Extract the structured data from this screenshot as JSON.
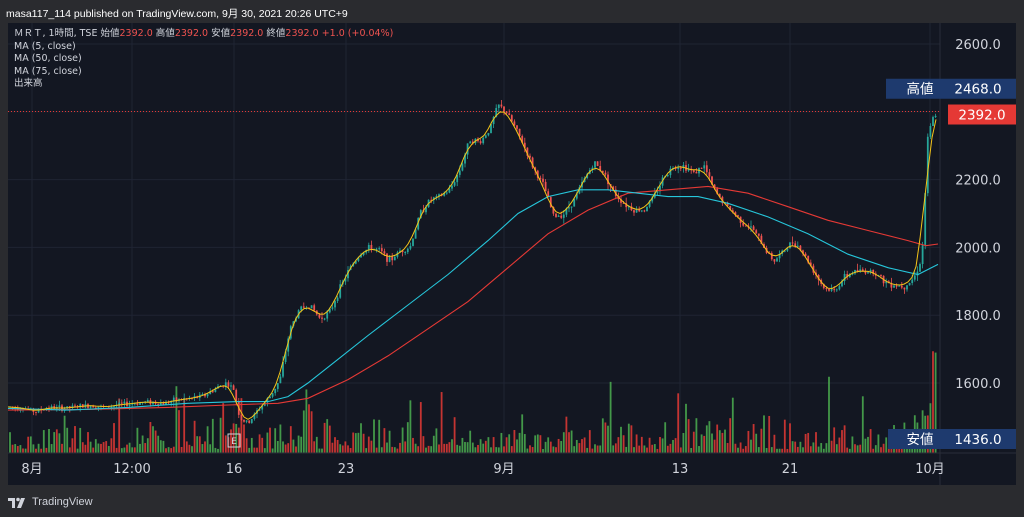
{
  "header": {
    "published": "masa117_114 published on TradingView.com, 9月 30, 2021 20:26 UTC+9"
  },
  "legend": {
    "symbol": "ＭＲＴ, 1時間, TSE",
    "open_label": "始値",
    "open": "2392.0",
    "high_label": "高値",
    "high": "2392.0",
    "low_label": "安値",
    "low": "2392.0",
    "close_label": "終値",
    "close": "2392.0",
    "change": "+1.0 (+0.04%)",
    "ma5": "MA (5, close)",
    "ma50": "MA (50, close)",
    "ma75": "MA (75, close)",
    "volume": "出来高"
  },
  "footer": {
    "brand": "TradingView"
  },
  "colors": {
    "up": "#26a69a",
    "down": "#ef5350",
    "ma5": "#f5c518",
    "ma50": "#26c6da",
    "ma75": "#e53935",
    "vol_up": "#4caf50",
    "vol_down": "#e53935",
    "label_bg": "#1e3a6e",
    "price_bg": "#e53935"
  },
  "chart_data": {
    "type": "candlestick",
    "y_axis": {
      "ticks": [
        "2600.0",
        "2200.0",
        "2000.0",
        "1800.0",
        "1600.0"
      ],
      "range": [
        1436,
        2600
      ]
    },
    "x_axis": {
      "ticks": [
        "8月",
        "12:00",
        "16",
        "23",
        "9月",
        "13",
        "21",
        "10月"
      ]
    },
    "labels": {
      "high_label": "高値",
      "high_value": "2468.0",
      "low_label": "安値",
      "low_value": "1436.0",
      "last_price": "2392.0"
    },
    "price_path": [
      [
        0,
        1530
      ],
      [
        18,
        1525
      ],
      [
        28,
        1515
      ],
      [
        40,
        1528
      ],
      [
        55,
        1525
      ],
      [
        70,
        1530
      ],
      [
        85,
        1535
      ],
      [
        95,
        1528
      ],
      [
        110,
        1535
      ],
      [
        125,
        1540
      ],
      [
        140,
        1545
      ],
      [
        155,
        1540
      ],
      [
        170,
        1550
      ],
      [
        185,
        1555
      ],
      [
        198,
        1565
      ],
      [
        208,
        1585
      ],
      [
        218,
        1600
      ],
      [
        226,
        1580
      ],
      [
        232,
        1495
      ],
      [
        240,
        1480
      ],
      [
        250,
        1520
      ],
      [
        262,
        1560
      ],
      [
        272,
        1610
      ],
      [
        282,
        1760
      ],
      [
        292,
        1820
      ],
      [
        302,
        1830
      ],
      [
        312,
        1790
      ],
      [
        322,
        1810
      ],
      [
        332,
        1880
      ],
      [
        342,
        1940
      ],
      [
        352,
        1980
      ],
      [
        362,
        2000
      ],
      [
        372,
        1990
      ],
      [
        382,
        1960
      ],
      [
        392,
        1990
      ],
      [
        402,
        2000
      ],
      [
        412,
        2100
      ],
      [
        422,
        2140
      ],
      [
        432,
        2150
      ],
      [
        442,
        2170
      ],
      [
        452,
        2230
      ],
      [
        462,
        2320
      ],
      [
        472,
        2310
      ],
      [
        482,
        2350
      ],
      [
        490,
        2420
      ],
      [
        498,
        2400
      ],
      [
        506,
        2360
      ],
      [
        516,
        2300
      ],
      [
        526,
        2230
      ],
      [
        536,
        2180
      ],
      [
        546,
        2090
      ],
      [
        556,
        2100
      ],
      [
        566,
        2140
      ],
      [
        576,
        2200
      ],
      [
        586,
        2250
      ],
      [
        596,
        2220
      ],
      [
        606,
        2160
      ],
      [
        616,
        2130
      ],
      [
        626,
        2110
      ],
      [
        636,
        2110
      ],
      [
        646,
        2150
      ],
      [
        656,
        2210
      ],
      [
        666,
        2240
      ],
      [
        676,
        2240
      ],
      [
        686,
        2220
      ],
      [
        696,
        2240
      ],
      [
        706,
        2170
      ],
      [
        716,
        2130
      ],
      [
        726,
        2100
      ],
      [
        736,
        2070
      ],
      [
        746,
        2050
      ],
      [
        756,
        2000
      ],
      [
        766,
        1960
      ],
      [
        776,
        1990
      ],
      [
        786,
        2020
      ],
      [
        796,
        1980
      ],
      [
        806,
        1930
      ],
      [
        816,
        1880
      ],
      [
        826,
        1870
      ],
      [
        836,
        1910
      ],
      [
        846,
        1930
      ],
      [
        856,
        1930
      ],
      [
        866,
        1930
      ],
      [
        876,
        1900
      ],
      [
        886,
        1890
      ],
      [
        896,
        1885
      ],
      [
        906,
        1910
      ],
      [
        914,
        1970
      ],
      [
        920,
        2330
      ],
      [
        926,
        2390
      ],
      [
        930,
        2392
      ]
    ],
    "ma50_path": [
      [
        0,
        1525
      ],
      [
        60,
        1520
      ],
      [
        120,
        1528
      ],
      [
        180,
        1540
      ],
      [
        230,
        1545
      ],
      [
        260,
        1545
      ],
      [
        280,
        1560
      ],
      [
        300,
        1600
      ],
      [
        330,
        1670
      ],
      [
        360,
        1740
      ],
      [
        400,
        1830
      ],
      [
        440,
        1920
      ],
      [
        480,
        2020
      ],
      [
        510,
        2100
      ],
      [
        540,
        2150
      ],
      [
        570,
        2170
      ],
      [
        600,
        2170
      ],
      [
        630,
        2160
      ],
      [
        660,
        2150
      ],
      [
        690,
        2150
      ],
      [
        720,
        2130
      ],
      [
        760,
        2090
      ],
      [
        800,
        2040
      ],
      [
        840,
        1980
      ],
      [
        880,
        1940
      ],
      [
        910,
        1920
      ],
      [
        930,
        1950
      ]
    ],
    "ma75_path": [
      [
        0,
        1520
      ],
      [
        80,
        1522
      ],
      [
        160,
        1528
      ],
      [
        220,
        1535
      ],
      [
        270,
        1540
      ],
      [
        300,
        1555
      ],
      [
        340,
        1610
      ],
      [
        380,
        1680
      ],
      [
        420,
        1760
      ],
      [
        460,
        1840
      ],
      [
        500,
        1940
      ],
      [
        540,
        2040
      ],
      [
        580,
        2110
      ],
      [
        620,
        2160
      ],
      [
        660,
        2170
      ],
      [
        700,
        2180
      ],
      [
        740,
        2160
      ],
      [
        780,
        2120
      ],
      [
        820,
        2080
      ],
      [
        860,
        2050
      ],
      [
        900,
        2020
      ],
      [
        918,
        2005
      ],
      [
        930,
        2010
      ]
    ],
    "volume_note": "volume bars drawn in lower panel"
  }
}
